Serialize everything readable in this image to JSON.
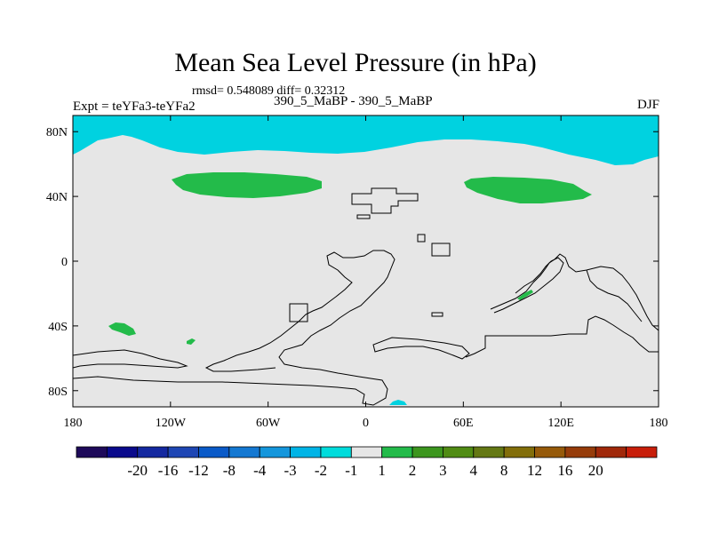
{
  "chart_data": {
    "type": "heatmap",
    "title": "Mean Sea Level Pressure (in hPa)",
    "stats_text": "rmsd= 0.548089 diff= 0.32312",
    "left_label": "Expt = teYFa3-teYFa2",
    "center_label": "390_5_MaBP - 390_5_MaBP",
    "right_label": "DJF",
    "x_ticks": [
      "180",
      "120W",
      "60W",
      "0",
      "60E",
      "120E",
      "180"
    ],
    "x_tick_values": [
      -180,
      -120,
      -60,
      0,
      60,
      120,
      180
    ],
    "y_ticks": [
      "80N",
      "40N",
      "0",
      "40S",
      "80S"
    ],
    "y_tick_values": [
      80,
      40,
      0,
      -40,
      -80
    ],
    "xlim": [
      -180,
      180
    ],
    "ylim": [
      -90,
      90
    ],
    "background_fill": {
      "label": "-1 to 1",
      "color": "#e6e6e6"
    },
    "shaded_regions": [
      {
        "name": "arctic-low-band",
        "range": "-2 to -1",
        "color": "#00d2e0"
      },
      {
        "name": "north-pacific-high",
        "range": "1 to 2",
        "color": "#23bb4a"
      },
      {
        "name": "eurasia-high",
        "range": "1 to 2",
        "color": "#23bb4a"
      },
      {
        "name": "south-pacific-high",
        "range": "1 to 2",
        "color": "#23bb4a"
      },
      {
        "name": "antarctic-low",
        "range": "-2 to -1",
        "color": "#00d2e0"
      }
    ],
    "colorbar": {
      "colors": [
        "#1e0a5a",
        "#0a0a8c",
        "#1428a0",
        "#1e46b4",
        "#0a5ac8",
        "#1478d2",
        "#1496dc",
        "#00b4e6",
        "#00dcdc",
        "#e6e6e6",
        "#23bb4a",
        "#3c961e",
        "#508c14",
        "#647814",
        "#826e0a",
        "#965a0a",
        "#963c0a",
        "#a0280a",
        "#c81e0a"
      ],
      "labels": [
        "-20",
        "-16",
        "-12",
        "-8",
        "-4",
        "-3",
        "-2",
        "-1",
        "1",
        "2",
        "3",
        "4",
        "8",
        "12",
        "16",
        "20"
      ]
    }
  }
}
